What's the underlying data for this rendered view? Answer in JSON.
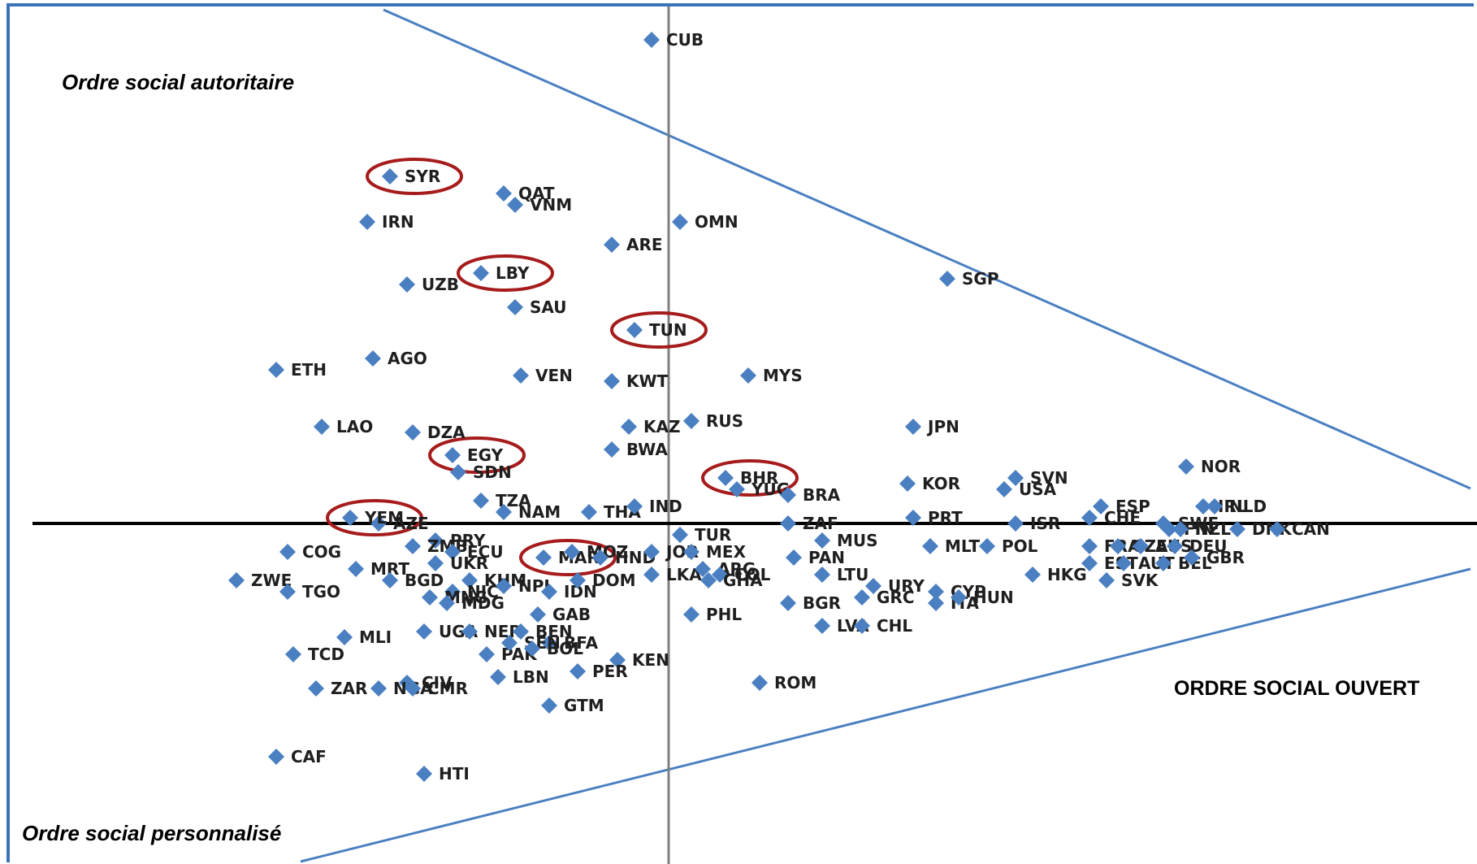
{
  "labels": {
    "authoritarian": "Ordre social autoritaire",
    "personalized": "Ordre social personnalisé",
    "open": "ORDRE SOCIAL OUVERT"
  },
  "colors": {
    "marker": "#4a7fc1",
    "axis_vertical": "#7f7f7f",
    "axis_horizontal": "#000000",
    "boundary": "#4a7fc1",
    "highlight": "#a61b1b",
    "frame": "#3b73b9"
  },
  "chart_data": {
    "type": "scatter",
    "title": "",
    "xlabel": "",
    "ylabel": "",
    "grid": false,
    "legend": "none",
    "marker": "diamond",
    "highlighted": [
      "SYR",
      "LBY",
      "TUN",
      "EGY",
      "YEM",
      "BHR",
      "MAR"
    ],
    "points": [
      {
        "label": "CUB",
        "x": -0.3,
        "y": 8.5
      },
      {
        "label": "SYR",
        "x": -4.9,
        "y": 6.1
      },
      {
        "label": "QAT",
        "x": -2.9,
        "y": 5.8
      },
      {
        "label": "VNM",
        "x": -2.7,
        "y": 5.6
      },
      {
        "label": "IRN",
        "x": -5.3,
        "y": 5.3
      },
      {
        "label": "OMN",
        "x": 0.2,
        "y": 5.3
      },
      {
        "label": "ARE",
        "x": -1.0,
        "y": 4.9
      },
      {
        "label": "LBY",
        "x": -3.3,
        "y": 4.4
      },
      {
        "label": "UZB",
        "x": -4.6,
        "y": 4.2
      },
      {
        "label": "SGP",
        "x": 4.9,
        "y": 4.3
      },
      {
        "label": "SAU",
        "x": -2.7,
        "y": 3.8
      },
      {
        "label": "TUN",
        "x": -0.6,
        "y": 3.4
      },
      {
        "label": "AGO",
        "x": -5.2,
        "y": 2.9
      },
      {
        "label": "ETH",
        "x": -6.9,
        "y": 2.7
      },
      {
        "label": "VEN",
        "x": -2.6,
        "y": 2.6
      },
      {
        "label": "MYS",
        "x": 1.4,
        "y": 2.6
      },
      {
        "label": "KWT",
        "x": -1.0,
        "y": 2.5
      },
      {
        "label": "RUS",
        "x": 0.4,
        "y": 1.8
      },
      {
        "label": "LAO",
        "x": -6.1,
        "y": 1.7
      },
      {
        "label": "DZA",
        "x": -4.5,
        "y": 1.6
      },
      {
        "label": "KAZ",
        "x": -0.7,
        "y": 1.7
      },
      {
        "label": "JPN",
        "x": 4.3,
        "y": 1.7
      },
      {
        "label": "EGY",
        "x": -3.8,
        "y": 1.2
      },
      {
        "label": "BWA",
        "x": -1.0,
        "y": 1.3
      },
      {
        "label": "SDN",
        "x": -3.7,
        "y": 0.9
      },
      {
        "label": "NOR",
        "x": 9.1,
        "y": 1.0
      },
      {
        "label": "BHR",
        "x": 1.0,
        "y": 0.8
      },
      {
        "label": "YUG",
        "x": 1.2,
        "y": 0.6
      },
      {
        "label": "SVN",
        "x": 6.1,
        "y": 0.8
      },
      {
        "label": "IRL",
        "x": 9.4,
        "y": 0.3
      },
      {
        "label": "NLD",
        "x": 9.6,
        "y": 0.3
      },
      {
        "label": "KOR",
        "x": 4.2,
        "y": 0.7
      },
      {
        "label": "USA",
        "x": 5.9,
        "y": 0.6
      },
      {
        "label": "ESP",
        "x": 7.6,
        "y": 0.3
      },
      {
        "label": "BRA",
        "x": 2.1,
        "y": 0.5
      },
      {
        "label": "TZA",
        "x": -3.3,
        "y": 0.4
      },
      {
        "label": "AZE",
        "x": -5.1,
        "y": 0.0
      },
      {
        "label": "YEM",
        "x": -5.6,
        "y": 0.1
      },
      {
        "label": "NAM",
        "x": -2.9,
        "y": 0.2
      },
      {
        "label": "THA",
        "x": -1.4,
        "y": 0.2
      },
      {
        "label": "IND",
        "x": -0.6,
        "y": 0.3
      },
      {
        "label": "PRT",
        "x": 4.3,
        "y": 0.1
      },
      {
        "label": "CHE",
        "x": 7.4,
        "y": 0.1
      },
      {
        "label": "SWE",
        "x": 8.7,
        "y": 0.0
      },
      {
        "label": "DNK",
        "x": 10.0,
        "y": -0.1
      },
      {
        "label": "CAN",
        "x": 10.7,
        "y": -0.1
      },
      {
        "label": "ZAF",
        "x": 2.1,
        "y": 0.0
      },
      {
        "label": "ISR",
        "x": 6.1,
        "y": 0.0
      },
      {
        "label": "FIN",
        "x": 8.8,
        "y": -0.1
      },
      {
        "label": "NZL",
        "x": 9.0,
        "y": -0.1
      },
      {
        "label": "PRY",
        "x": -4.1,
        "y": -0.3
      },
      {
        "label": "COG",
        "x": -6.7,
        "y": -0.5
      },
      {
        "label": "MRT",
        "x": -5.5,
        "y": -0.8
      },
      {
        "label": "ZMB",
        "x": -4.5,
        "y": -0.4
      },
      {
        "label": "ECU",
        "x": -3.8,
        "y": -0.5
      },
      {
        "label": "MAR",
        "x": -2.2,
        "y": -0.6
      },
      {
        "label": "MOZ",
        "x": -1.7,
        "y": -0.5
      },
      {
        "label": "HND",
        "x": -1.2,
        "y": -0.6
      },
      {
        "label": "JOR",
        "x": -0.3,
        "y": -0.5
      },
      {
        "label": "MEX",
        "x": 0.4,
        "y": -0.5
      },
      {
        "label": "TUR",
        "x": 0.2,
        "y": -0.2
      },
      {
        "label": "MUS",
        "x": 2.7,
        "y": -0.3
      },
      {
        "label": "PAN",
        "x": 2.2,
        "y": -0.6
      },
      {
        "label": "MLT",
        "x": 4.6,
        "y": -0.4
      },
      {
        "label": "POL",
        "x": 5.6,
        "y": -0.4
      },
      {
        "label": "FRA",
        "x": 7.4,
        "y": -0.4
      },
      {
        "label": "CZE",
        "x": 7.9,
        "y": -0.4
      },
      {
        "label": "AUS",
        "x": 8.3,
        "y": -0.4
      },
      {
        "label": "DEU",
        "x": 8.9,
        "y": -0.4
      },
      {
        "label": "EST",
        "x": 7.4,
        "y": -0.7
      },
      {
        "label": "AUT",
        "x": 8.0,
        "y": -0.7
      },
      {
        "label": "BEL",
        "x": 8.7,
        "y": -0.7
      },
      {
        "label": "GBR",
        "x": 9.2,
        "y": -0.6
      },
      {
        "label": "HKG",
        "x": 6.4,
        "y": -0.9
      },
      {
        "label": "SVK",
        "x": 7.7,
        "y": -1.0
      },
      {
        "label": "ZWE",
        "x": -7.6,
        "y": -1.0
      },
      {
        "label": "TGO",
        "x": -6.7,
        "y": -1.2
      },
      {
        "label": "BGD",
        "x": -4.9,
        "y": -1.0
      },
      {
        "label": "UKR",
        "x": -4.1,
        "y": -0.7
      },
      {
        "label": "KHM",
        "x": -3.5,
        "y": -1.0
      },
      {
        "label": "NIC",
        "x": -3.8,
        "y": -1.2
      },
      {
        "label": "NPL",
        "x": -2.9,
        "y": -1.1
      },
      {
        "label": "IDN",
        "x": -2.1,
        "y": -1.2
      },
      {
        "label": "DOM",
        "x": -1.6,
        "y": -1.0
      },
      {
        "label": "LKA",
        "x": -0.3,
        "y": -0.9
      },
      {
        "label": "ARG",
        "x": 0.6,
        "y": -0.8
      },
      {
        "label": "COL",
        "x": 0.9,
        "y": -0.9
      },
      {
        "label": "GHA",
        "x": 0.7,
        "y": -1.0
      },
      {
        "label": "LTU",
        "x": 2.7,
        "y": -0.9
      },
      {
        "label": "URY",
        "x": 3.6,
        "y": -1.1
      },
      {
        "label": "CYP",
        "x": 4.7,
        "y": -1.2
      },
      {
        "label": "MNG",
        "x": -4.2,
        "y": -1.3
      },
      {
        "label": "MDG",
        "x": -3.9,
        "y": -1.4
      },
      {
        "label": "BGR",
        "x": 2.1,
        "y": -1.4
      },
      {
        "label": "GRC",
        "x": 3.4,
        "y": -1.3
      },
      {
        "label": "ITA",
        "x": 4.7,
        "y": -1.4
      },
      {
        "label": "HUN",
        "x": 5.1,
        "y": -1.3
      },
      {
        "label": "GAB",
        "x": -2.3,
        "y": -1.6
      },
      {
        "label": "PHL",
        "x": 0.4,
        "y": -1.6
      },
      {
        "label": "UGA",
        "x": -4.3,
        "y": -1.9
      },
      {
        "label": "NER",
        "x": -3.5,
        "y": -1.9
      },
      {
        "label": "BEN",
        "x": -2.6,
        "y": -1.9
      },
      {
        "label": "BFA",
        "x": -2.1,
        "y": -2.1
      },
      {
        "label": "LVA",
        "x": 2.7,
        "y": -1.8
      },
      {
        "label": "CHL",
        "x": 3.4,
        "y": -1.8
      },
      {
        "label": "MLI",
        "x": -5.7,
        "y": -2.0
      },
      {
        "label": "TCD",
        "x": -6.6,
        "y": -2.3
      },
      {
        "label": "PAK",
        "x": -3.2,
        "y": -2.3
      },
      {
        "label": "SEN",
        "x": -2.8,
        "y": -2.1
      },
      {
        "label": "BOL",
        "x": -2.4,
        "y": -2.2
      },
      {
        "label": "KEN",
        "x": -0.9,
        "y": -2.4
      },
      {
        "label": "CIV",
        "x": -4.6,
        "y": -2.8
      },
      {
        "label": "LBN",
        "x": -3.0,
        "y": -2.7
      },
      {
        "label": "PER",
        "x": -1.6,
        "y": -2.6
      },
      {
        "label": "ZAR",
        "x": -6.2,
        "y": -2.9
      },
      {
        "label": "NGA",
        "x": -5.1,
        "y": -2.9
      },
      {
        "label": "CMR",
        "x": -4.5,
        "y": -2.9
      },
      {
        "label": "ROM",
        "x": 1.6,
        "y": -2.8
      },
      {
        "label": "GTM",
        "x": -2.1,
        "y": -3.2
      },
      {
        "label": "CAF",
        "x": -6.9,
        "y": -4.1
      },
      {
        "label": "HTI",
        "x": -4.3,
        "y": -4.4
      }
    ]
  }
}
